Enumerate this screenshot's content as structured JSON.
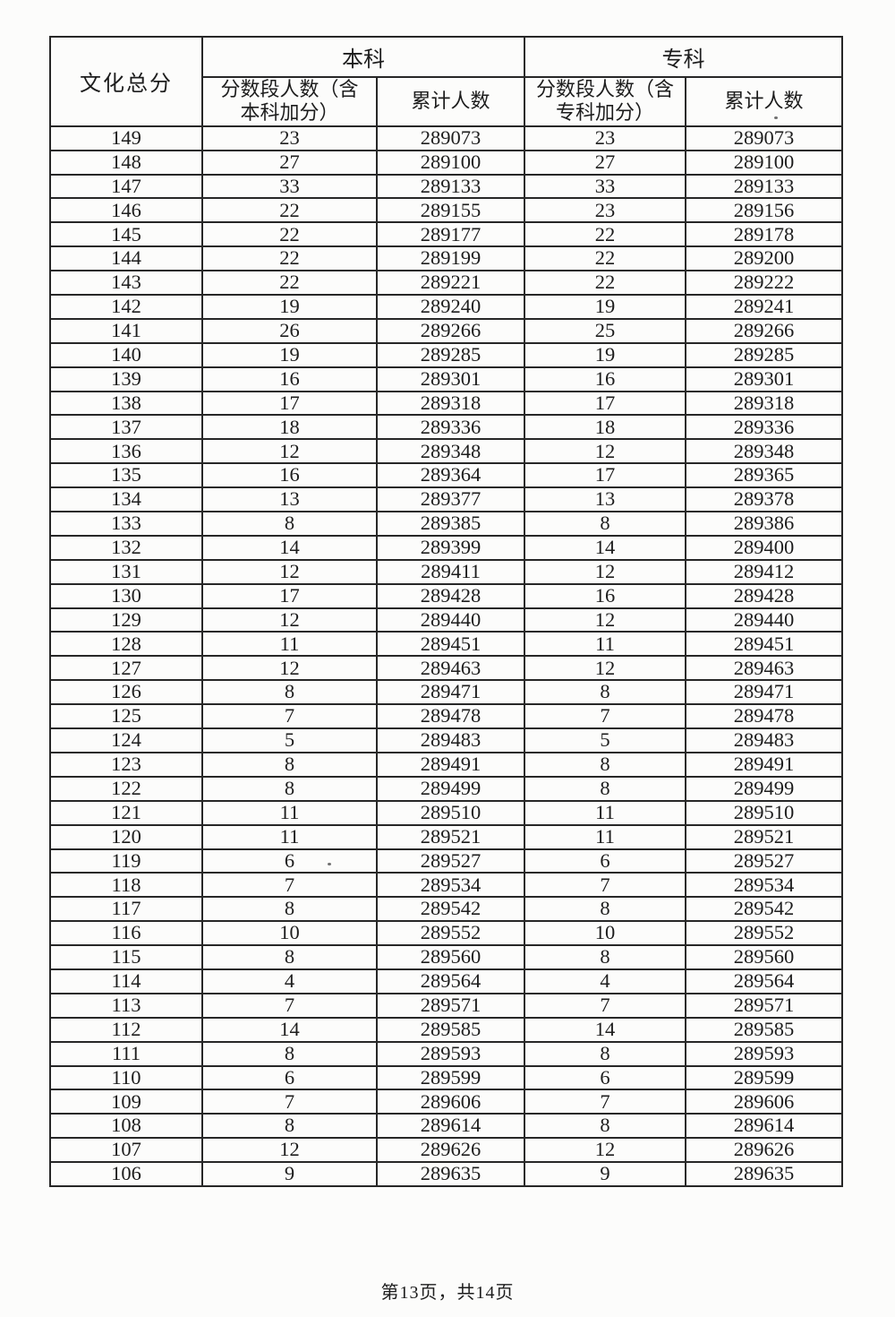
{
  "table": {
    "score_column_header": "文化总分",
    "group_headers": [
      {
        "label": "本科"
      },
      {
        "label": "专科"
      }
    ],
    "sub_headers": [
      "分数段人数（含\n本科加分）",
      "累计人数",
      "分数段人数（含\n专科加分）",
      "累计人数"
    ],
    "rows": [
      [
        149,
        23,
        289073,
        23,
        289073
      ],
      [
        148,
        27,
        289100,
        27,
        289100
      ],
      [
        147,
        33,
        289133,
        33,
        289133
      ],
      [
        146,
        22,
        289155,
        23,
        289156
      ],
      [
        145,
        22,
        289177,
        22,
        289178
      ],
      [
        144,
        22,
        289199,
        22,
        289200
      ],
      [
        143,
        22,
        289221,
        22,
        289222
      ],
      [
        142,
        19,
        289240,
        19,
        289241
      ],
      [
        141,
        26,
        289266,
        25,
        289266
      ],
      [
        140,
        19,
        289285,
        19,
        289285
      ],
      [
        139,
        16,
        289301,
        16,
        289301
      ],
      [
        138,
        17,
        289318,
        17,
        289318
      ],
      [
        137,
        18,
        289336,
        18,
        289336
      ],
      [
        136,
        12,
        289348,
        12,
        289348
      ],
      [
        135,
        16,
        289364,
        17,
        289365
      ],
      [
        134,
        13,
        289377,
        13,
        289378
      ],
      [
        133,
        8,
        289385,
        8,
        289386
      ],
      [
        132,
        14,
        289399,
        14,
        289400
      ],
      [
        131,
        12,
        289411,
        12,
        289412
      ],
      [
        130,
        17,
        289428,
        16,
        289428
      ],
      [
        129,
        12,
        289440,
        12,
        289440
      ],
      [
        128,
        11,
        289451,
        11,
        289451
      ],
      [
        127,
        12,
        289463,
        12,
        289463
      ],
      [
        126,
        8,
        289471,
        8,
        289471
      ],
      [
        125,
        7,
        289478,
        7,
        289478
      ],
      [
        124,
        5,
        289483,
        5,
        289483
      ],
      [
        123,
        8,
        289491,
        8,
        289491
      ],
      [
        122,
        8,
        289499,
        8,
        289499
      ],
      [
        121,
        11,
        289510,
        11,
        289510
      ],
      [
        120,
        11,
        289521,
        11,
        289521
      ],
      [
        119,
        6,
        289527,
        6,
        289527
      ],
      [
        118,
        7,
        289534,
        7,
        289534
      ],
      [
        117,
        8,
        289542,
        8,
        289542
      ],
      [
        116,
        10,
        289552,
        10,
        289552
      ],
      [
        115,
        8,
        289560,
        8,
        289560
      ],
      [
        114,
        4,
        289564,
        4,
        289564
      ],
      [
        113,
        7,
        289571,
        7,
        289571
      ],
      [
        112,
        14,
        289585,
        14,
        289585
      ],
      [
        111,
        8,
        289593,
        8,
        289593
      ],
      [
        110,
        6,
        289599,
        6,
        289599
      ],
      [
        109,
        7,
        289606,
        7,
        289606
      ],
      [
        108,
        8,
        289614,
        8,
        289614
      ],
      [
        107,
        12,
        289626,
        12,
        289626
      ],
      [
        106,
        9,
        289635,
        9,
        289635
      ]
    ]
  },
  "footer": {
    "page_info": "第13页，共14页"
  }
}
